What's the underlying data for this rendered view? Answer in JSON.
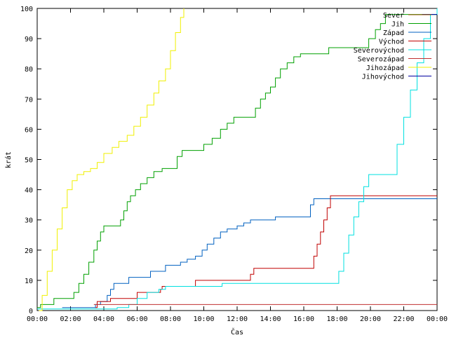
{
  "chart_data": {
    "type": "line",
    "title": "",
    "xlabel": "Čas",
    "ylabel": "krát",
    "xlim": [
      0,
      24
    ],
    "ylim": [
      0,
      100
    ],
    "grid": false,
    "legend_position": "top-right",
    "x_ticks": [
      {
        "value": 0,
        "label": "00:00"
      },
      {
        "value": 2,
        "label": "02:00"
      },
      {
        "value": 4,
        "label": "04:00"
      },
      {
        "value": 6,
        "label": "06:00"
      },
      {
        "value": 8,
        "label": "08:00"
      },
      {
        "value": 10,
        "label": "10:00"
      },
      {
        "value": 12,
        "label": "12:00"
      },
      {
        "value": 14,
        "label": "14:00"
      },
      {
        "value": 16,
        "label": "16:00"
      },
      {
        "value": 18,
        "label": "18:00"
      },
      {
        "value": 20,
        "label": "20:00"
      },
      {
        "value": 22,
        "label": "22:00"
      },
      {
        "value": 24,
        "label": "00:00"
      }
    ],
    "y_ticks": [
      {
        "value": 0,
        "label": "0"
      },
      {
        "value": 10,
        "label": "10"
      },
      {
        "value": 20,
        "label": "20"
      },
      {
        "value": 30,
        "label": "30"
      },
      {
        "value": 40,
        "label": "40"
      },
      {
        "value": 50,
        "label": "50"
      },
      {
        "value": 60,
        "label": "60"
      },
      {
        "value": 70,
        "label": "70"
      },
      {
        "value": 80,
        "label": "80"
      },
      {
        "value": 90,
        "label": "90"
      },
      {
        "value": 100,
        "label": "100"
      }
    ],
    "series": [
      {
        "name": "Sever",
        "color": "#a05000",
        "points": [
          [
            23.1,
            98
          ],
          [
            24,
            98
          ]
        ]
      },
      {
        "name": "Jih",
        "color": "#00a000",
        "points": [
          [
            0,
            1
          ],
          [
            0.1,
            1
          ],
          [
            0.2,
            2
          ],
          [
            0.8,
            2
          ],
          [
            1.0,
            4
          ],
          [
            2.1,
            4
          ],
          [
            2.2,
            6
          ],
          [
            2.5,
            9
          ],
          [
            2.8,
            12
          ],
          [
            3.1,
            16
          ],
          [
            3.4,
            20
          ],
          [
            3.6,
            23
          ],
          [
            3.8,
            26
          ],
          [
            4.0,
            28
          ],
          [
            4.9,
            28
          ],
          [
            5.0,
            30
          ],
          [
            5.2,
            33
          ],
          [
            5.4,
            36
          ],
          [
            5.6,
            38
          ],
          [
            5.9,
            40
          ],
          [
            6.2,
            42
          ],
          [
            6.6,
            44
          ],
          [
            7.0,
            46
          ],
          [
            7.5,
            47
          ],
          [
            8.0,
            47
          ],
          [
            8.4,
            51
          ],
          [
            8.7,
            53
          ],
          [
            9.8,
            53
          ],
          [
            10.0,
            55
          ],
          [
            10.5,
            57
          ],
          [
            11.0,
            60
          ],
          [
            11.4,
            62
          ],
          [
            11.8,
            64
          ],
          [
            12.8,
            64
          ],
          [
            13.1,
            67
          ],
          [
            13.4,
            70
          ],
          [
            13.7,
            72
          ],
          [
            14.0,
            74
          ],
          [
            14.3,
            77
          ],
          [
            14.6,
            80
          ],
          [
            15.0,
            82
          ],
          [
            15.4,
            84
          ],
          [
            15.8,
            85
          ],
          [
            17.0,
            85
          ],
          [
            17.5,
            87
          ],
          [
            19.6,
            87
          ],
          [
            19.9,
            90
          ],
          [
            20.3,
            93
          ],
          [
            20.6,
            95
          ],
          [
            20.9,
            98
          ],
          [
            24,
            98
          ]
        ]
      },
      {
        "name": "Západ",
        "color": "#0060c0",
        "points": [
          [
            1.5,
            1
          ],
          [
            3.4,
            1
          ],
          [
            3.5,
            2
          ],
          [
            3.8,
            3
          ],
          [
            4.2,
            5
          ],
          [
            4.4,
            7
          ],
          [
            4.6,
            9
          ],
          [
            5.2,
            9
          ],
          [
            5.5,
            11
          ],
          [
            6.6,
            11
          ],
          [
            6.8,
            13
          ],
          [
            7.5,
            13
          ],
          [
            7.7,
            15
          ],
          [
            8.4,
            15
          ],
          [
            8.6,
            16
          ],
          [
            9.0,
            17
          ],
          [
            9.5,
            18
          ],
          [
            9.9,
            20
          ],
          [
            10.2,
            22
          ],
          [
            10.6,
            24
          ],
          [
            11.0,
            26
          ],
          [
            11.4,
            27
          ],
          [
            12.0,
            28
          ],
          [
            12.4,
            29
          ],
          [
            12.8,
            30
          ],
          [
            14.0,
            30
          ],
          [
            14.3,
            31
          ],
          [
            16.2,
            31
          ],
          [
            16.4,
            35
          ],
          [
            16.6,
            37
          ],
          [
            24,
            37
          ]
        ]
      },
      {
        "name": "Východ",
        "color": "#c00000",
        "points": [
          [
            3.5,
            1
          ],
          [
            3.6,
            3
          ],
          [
            4.3,
            3
          ],
          [
            4.4,
            4
          ],
          [
            5.8,
            4
          ],
          [
            6.0,
            6
          ],
          [
            7.2,
            6
          ],
          [
            7.4,
            7
          ],
          [
            7.5,
            8
          ],
          [
            9.3,
            8
          ],
          [
            9.5,
            10
          ],
          [
            12.6,
            10
          ],
          [
            12.8,
            12
          ],
          [
            13.0,
            14
          ],
          [
            16.4,
            14
          ],
          [
            16.6,
            18
          ],
          [
            16.8,
            22
          ],
          [
            17.0,
            26
          ],
          [
            17.2,
            30
          ],
          [
            17.4,
            34
          ],
          [
            17.6,
            38
          ],
          [
            24,
            38
          ]
        ]
      },
      {
        "name": "Severovýchod",
        "color": "#00e0e0",
        "points": [
          [
            0,
            0.5
          ],
          [
            4.5,
            0.5
          ],
          [
            4.8,
            1
          ],
          [
            5.5,
            2
          ],
          [
            6.0,
            4
          ],
          [
            6.6,
            6
          ],
          [
            7.3,
            7
          ],
          [
            7.7,
            8
          ],
          [
            10.5,
            8
          ],
          [
            11.1,
            9
          ],
          [
            17.8,
            9
          ],
          [
            18.1,
            13
          ],
          [
            18.4,
            19
          ],
          [
            18.7,
            25
          ],
          [
            19.0,
            31
          ],
          [
            19.3,
            36
          ],
          [
            19.6,
            41
          ],
          [
            19.9,
            45
          ],
          [
            21.3,
            45
          ],
          [
            21.6,
            55
          ],
          [
            22.0,
            64
          ],
          [
            22.4,
            73
          ],
          [
            22.8,
            82
          ],
          [
            23.2,
            90
          ],
          [
            23.6,
            98
          ],
          [
            24,
            100
          ]
        ]
      },
      {
        "name": "Severozápad",
        "color": "#c03030",
        "points": [
          [
            3.4,
            2
          ],
          [
            24,
            2
          ]
        ]
      },
      {
        "name": "Jihozápad",
        "color": "#f0f000",
        "points": [
          [
            0.1,
            0
          ],
          [
            0.3,
            5
          ],
          [
            0.6,
            13
          ],
          [
            0.9,
            20
          ],
          [
            1.2,
            27
          ],
          [
            1.5,
            34
          ],
          [
            1.8,
            40
          ],
          [
            2.1,
            43
          ],
          [
            2.4,
            45
          ],
          [
            2.8,
            46
          ],
          [
            3.2,
            47
          ],
          [
            3.6,
            49
          ],
          [
            4.0,
            52
          ],
          [
            4.5,
            54
          ],
          [
            4.9,
            56
          ],
          [
            5.4,
            58
          ],
          [
            5.8,
            61
          ],
          [
            6.2,
            64
          ],
          [
            6.6,
            68
          ],
          [
            7.0,
            72
          ],
          [
            7.3,
            76
          ],
          [
            7.7,
            80
          ],
          [
            8.0,
            86
          ],
          [
            8.3,
            92
          ],
          [
            8.6,
            97
          ],
          [
            8.8,
            100
          ]
        ]
      },
      {
        "name": "Jihovýchod",
        "color": "#0000a0",
        "points": [
          [
            23.1,
            98
          ],
          [
            24,
            98
          ]
        ]
      }
    ]
  }
}
